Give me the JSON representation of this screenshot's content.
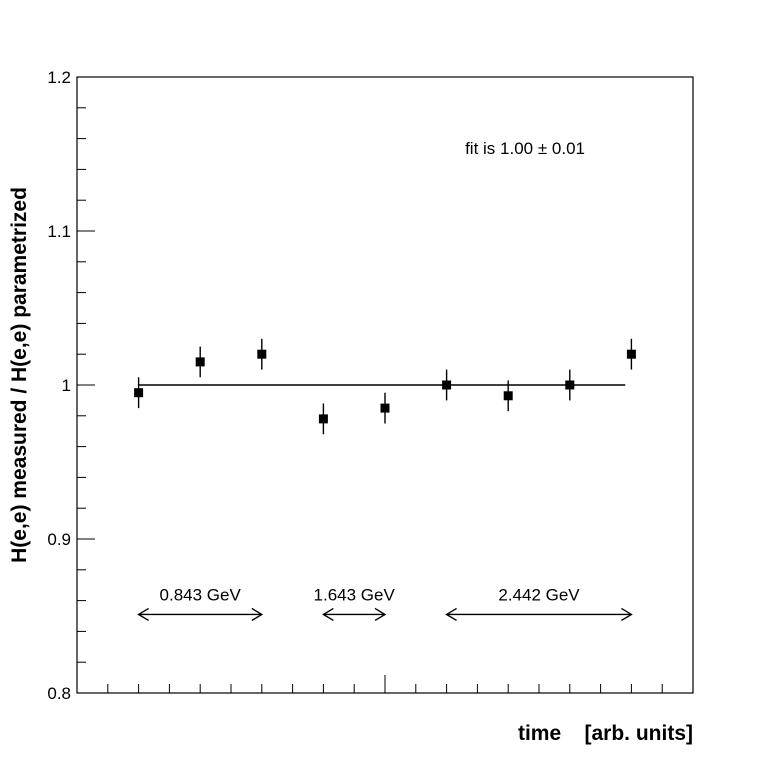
{
  "chart_data": {
    "type": "scatter",
    "title": "",
    "xlabel": "time    [arb. units]",
    "ylabel": "H(e,e) measured / H(e,e) parametrized",
    "ylim": [
      0.8,
      1.2
    ],
    "xlim": [
      0,
      10
    ],
    "yticks": [
      0.8,
      0.9,
      1.0,
      1.1,
      1.2
    ],
    "ytick_labels": [
      "0.8",
      "0.9",
      "1",
      "1.1",
      "1.2"
    ],
    "x_major_ticks": [
      0,
      5,
      10
    ],
    "x_minor_tick_step": 0.5,
    "y_minor_tick_step": 0.02,
    "grid": false,
    "legend": "none",
    "points": [
      {
        "x": 1.0,
        "y": 0.995,
        "err": 0.01
      },
      {
        "x": 2.0,
        "y": 1.015,
        "err": 0.01
      },
      {
        "x": 3.0,
        "y": 1.02,
        "err": 0.01
      },
      {
        "x": 4.0,
        "y": 0.978,
        "err": 0.01
      },
      {
        "x": 5.0,
        "y": 0.985,
        "err": 0.01
      },
      {
        "x": 6.0,
        "y": 1.0,
        "err": 0.01
      },
      {
        "x": 7.0,
        "y": 0.993,
        "err": 0.01
      },
      {
        "x": 8.0,
        "y": 1.0,
        "err": 0.01
      },
      {
        "x": 9.0,
        "y": 1.02,
        "err": 0.01
      }
    ],
    "fit_line": {
      "x0": 1.0,
      "x1": 8.9,
      "y": 1.0
    },
    "fit_annotation": "fit is 1.00 ± 0.01",
    "fit_annotation_pos": {
      "x": 6.3,
      "y": 1.15
    },
    "ranges": [
      {
        "label": "0.843 GeV",
        "x0": 1.0,
        "x1": 3.0,
        "y": 0.851
      },
      {
        "label": "1.643 GeV",
        "x0": 4.0,
        "x1": 5.0,
        "y": 0.851
      },
      {
        "label": "2.442 GeV",
        "x0": 6.0,
        "x1": 9.0,
        "y": 0.851
      }
    ],
    "range_label_y": 0.86
  }
}
